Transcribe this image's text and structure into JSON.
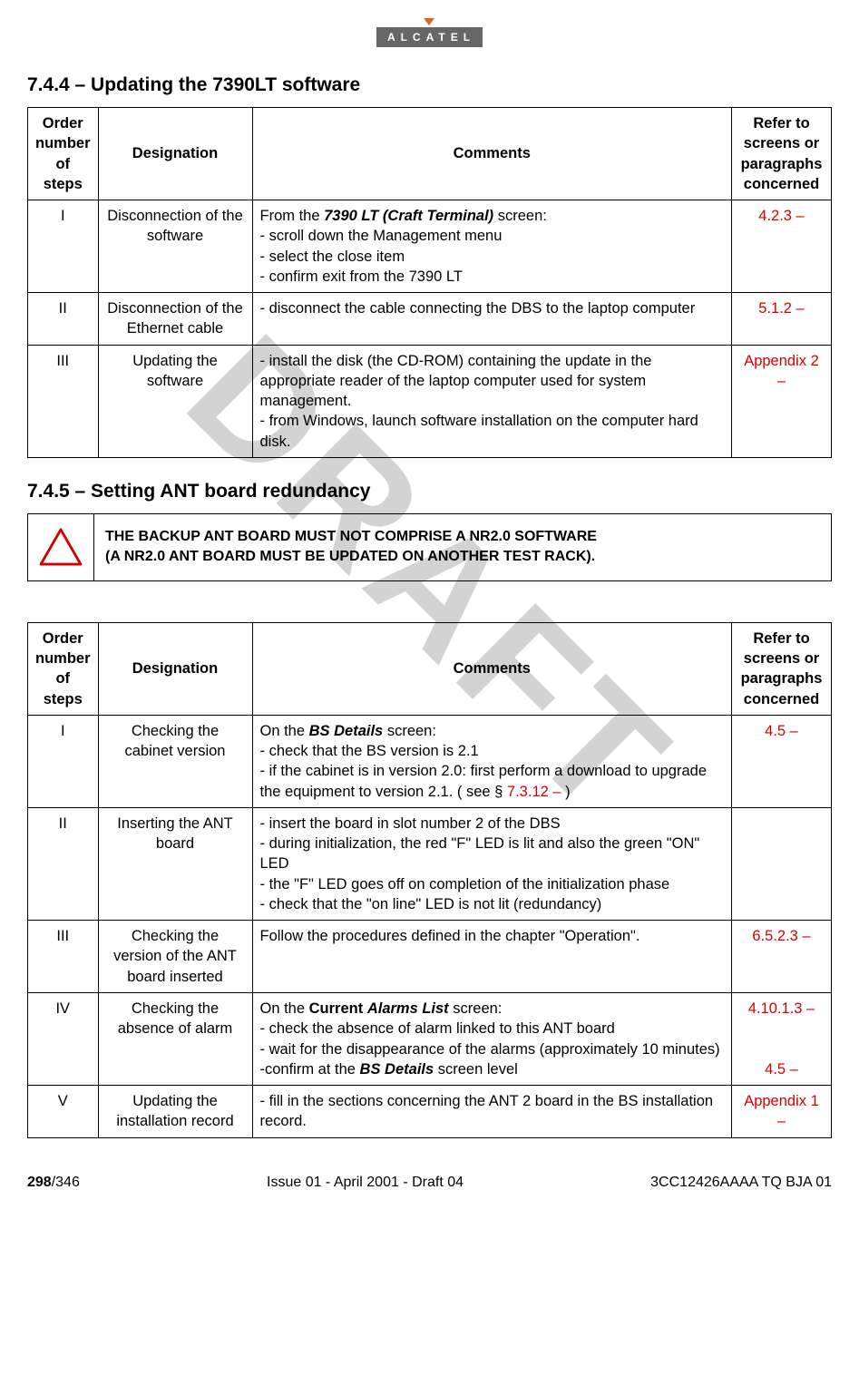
{
  "watermark": "DRAFT",
  "logo_text": "ALCATEL",
  "section1": {
    "heading": "7.4.4 –  Updating the 7390LT software",
    "headers": [
      "Order number of steps",
      "Designation",
      "Comments",
      "Refer to screens or paragraphs concerned"
    ],
    "rows": [
      {
        "order": "I",
        "designation": "Disconnection of the software",
        "comments_parts": [
          {
            "t": "From the ",
            "cls": ""
          },
          {
            "t": "7390 LT (Craft Terminal)",
            "cls": "bold-italic"
          },
          {
            "t": " screen:",
            "cls": ""
          }
        ],
        "comments_rest": "- scroll down the Management menu\n- select the close item\n- confirm exit from the 7390 LT",
        "ref": "4.2.3 –"
      },
      {
        "order": "II",
        "designation": "Disconnection of the Ethernet cable",
        "comments_plain": "- disconnect the cable connecting the DBS to the laptop computer",
        "ref": "5.1.2 –"
      },
      {
        "order": "III",
        "designation": "Updating the software",
        "comments_plain": "- install the disk (the CD-ROM) containing the update in the appropriate reader of the laptop computer used for system management.\n- from Windows, launch software installation on the computer hard disk.",
        "ref": "Appendix 2 –"
      }
    ]
  },
  "section2": {
    "heading": "7.4.5 –  Setting ANT board redundancy",
    "warning": "THE BACKUP ANT BOARD MUST NOT COMPRISE A NR2.0 SOFTWARE\n(A NR2.0 ANT BOARD MUST BE UPDATED ON ANOTHER TEST RACK).",
    "headers": [
      "Order number of steps",
      "Designation",
      "Comments",
      "Refer to screens or paragraphs concerned"
    ],
    "rows": [
      {
        "order": "I",
        "designation": "Checking the cabinet version",
        "comments_html": "On the <span class='bold-italic'>BS Details</span> screen:<br>- check that the BS version is 2.1<br>- if the cabinet is in version 2.0: first perform a download to upgrade the equipment to version 2.1. ( see § <span class='red'>7.3.12 – </span> )",
        "ref": "4.5 –"
      },
      {
        "order": "II",
        "designation": "Inserting the ANT board",
        "comments_html": "- insert the board in slot number 2 of the DBS<br>- during initialization, the red \"F\" LED is lit and also the green \"ON\" LED<br>- the \"F\" LED goes off on completion of the initialization phase<br>- check that the \"on line\" LED is not lit (redundancy)",
        "ref": ""
      },
      {
        "order": "III",
        "designation": "Checking the version of the ANT board inserted",
        "comments_html": "Follow the procedures defined in the chapter \"Operation\".",
        "ref": "6.5.2.3 –"
      },
      {
        "order": "IV",
        "designation": "Checking the absence of alarm",
        "comments_html": "On the <span class='bold'>Current</span> <span class='bold-italic'>Alarms List</span> screen:<br>- check the absence of alarm linked to this ANT board<br>- wait for the disappearance of the alarms (approximately 10 minutes)<br>-confirm at the <span class='bold-italic'>BS Details</span> screen level",
        "ref": "4.10.1.3 –<br><br><br>4.5 –"
      },
      {
        "order": "V",
        "designation": "Updating the installation record",
        "comments_html": "- fill in the sections concerning the ANT 2 board in the BS installation record.",
        "ref": "Appendix 1 –"
      }
    ]
  },
  "footer": {
    "page_current": "298",
    "page_total": "/346",
    "center": "Issue 01 - April 2001 - Draft 04",
    "right": "3CC12426AAAA TQ BJA 01"
  },
  "colors": {
    "text": "#000000",
    "red": "#d40000",
    "watermark": "rgba(128,128,128,0.35)",
    "logo_bg": "#666666",
    "warning_stroke": "#d40000"
  }
}
